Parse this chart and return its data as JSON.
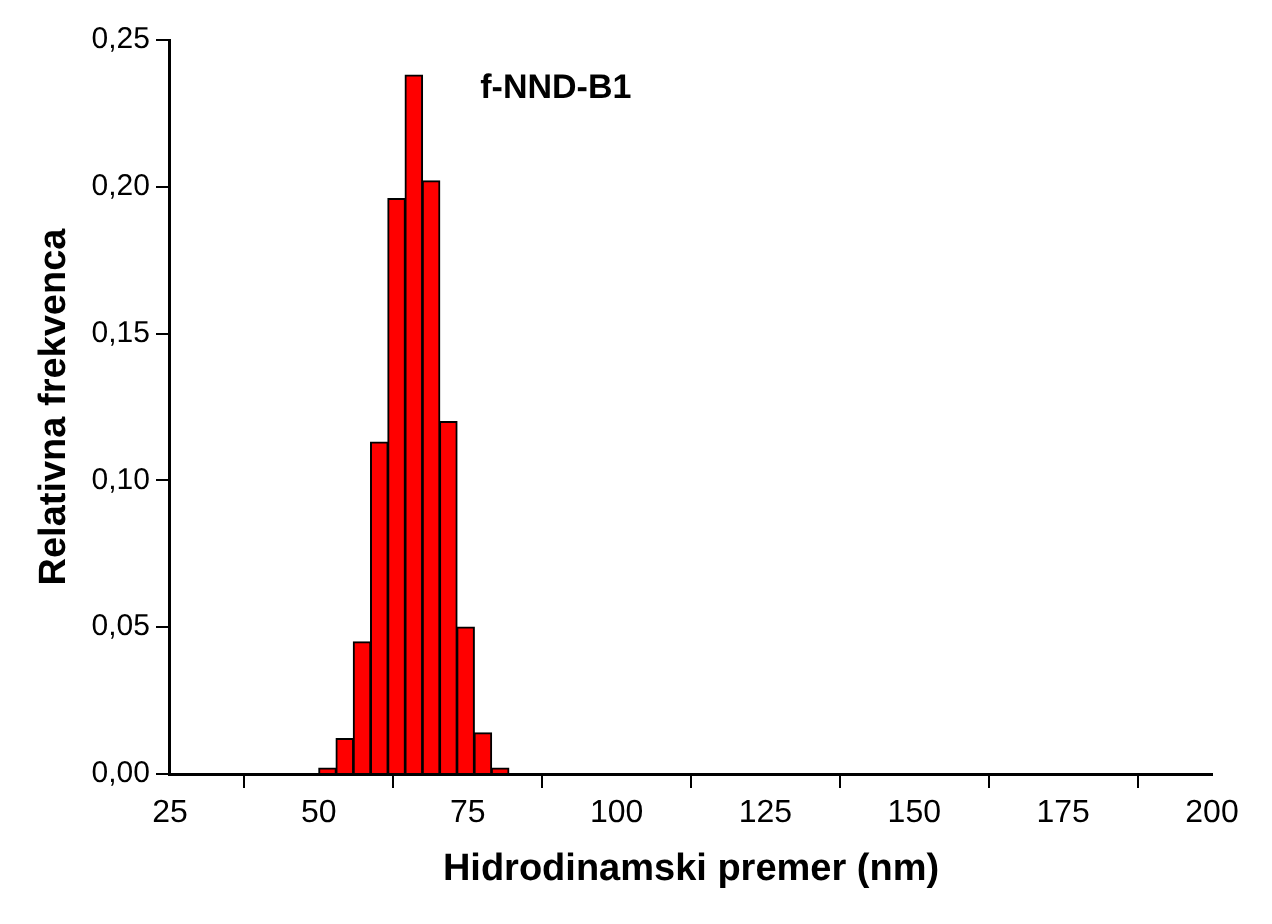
{
  "chart_data": {
    "type": "histogram",
    "xlabel": "Hidrodinamski premer (nm)",
    "ylabel": "Relativna frekvenca",
    "annotations": [
      "f-NND-B1"
    ],
    "bins": [
      50,
      52.9,
      55.8,
      58.7,
      61.6,
      64.5,
      67.4,
      70.3,
      73.2,
      76.1,
      79,
      81.9
    ],
    "values": [
      0.002,
      0.012,
      0.045,
      0.113,
      0.196,
      0.238,
      0.202,
      0.12,
      0.05,
      0.014,
      0.002
    ],
    "color": "#ff0000",
    "xlim": [
      25,
      200
    ],
    "xticks": [
      25,
      50,
      75,
      100,
      125,
      150,
      175,
      200
    ],
    "ylim": [
      0,
      0.25
    ],
    "yticks": [
      {
        "value": 0,
        "label": "0,00"
      },
      {
        "value": 0.05,
        "label": "0,05"
      },
      {
        "value": 0.1,
        "label": "0,10"
      },
      {
        "value": 0.15,
        "label": "0,15"
      },
      {
        "value": 0.2,
        "label": "0,20"
      },
      {
        "value": 0.25,
        "label": "0,25"
      }
    ],
    "grid": false,
    "legend": false
  }
}
